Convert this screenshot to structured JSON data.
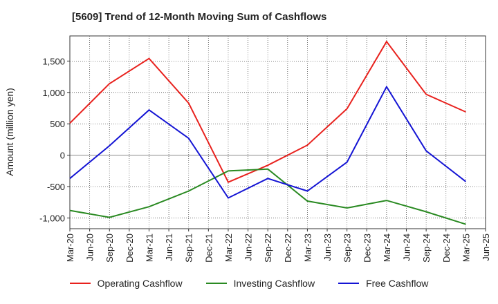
{
  "chart_data": {
    "type": "line",
    "title": "[5609]  Trend of 12-Month Moving Sum of Cashflows",
    "ylabel": "Amount (million yen)",
    "xlabel": "",
    "x_ticks": [
      "Mar-20",
      "Jun-20",
      "Sep-20",
      "Dec-20",
      "Mar-21",
      "Jun-21",
      "Sep-21",
      "Dec-21",
      "Mar-22",
      "Jun-22",
      "Sep-22",
      "Dec-22",
      "Mar-23",
      "Jun-23",
      "Sep-23",
      "Dec-23",
      "Mar-24",
      "Jun-24",
      "Sep-24",
      "Dec-24",
      "Mar-25",
      "Jun-25"
    ],
    "y_ticks": [
      -1000,
      -500,
      0,
      500,
      1000,
      1500
    ],
    "y_tick_labels": [
      "-1,000",
      "-500",
      "0",
      "500",
      "1,000",
      "1,500"
    ],
    "ylim": [
      -1170,
      1900
    ],
    "grid": true,
    "legend_position": "bottom",
    "series": [
      {
        "name": "Operating Cashflow",
        "color": "#e8211d",
        "x": [
          "Mar-20",
          "Sep-20",
          "Mar-21",
          "Sep-21",
          "Mar-22",
          "Sep-22",
          "Mar-23",
          "Sep-23",
          "Mar-24",
          "Sep-24",
          "Mar-25"
        ],
        "values": [
          510,
          1140,
          1540,
          830,
          -430,
          -160,
          160,
          740,
          1810,
          970,
          690
        ]
      },
      {
        "name": "Investing Cashflow",
        "color": "#2a8a22",
        "x": [
          "Mar-20",
          "Sep-20",
          "Mar-21",
          "Sep-21",
          "Mar-22",
          "Sep-22",
          "Mar-23",
          "Sep-23",
          "Mar-24",
          "Sep-24",
          "Mar-25"
        ],
        "values": [
          -880,
          -990,
          -820,
          -570,
          -250,
          -220,
          -730,
          -840,
          -720,
          -900,
          -1100
        ]
      },
      {
        "name": "Free Cashflow",
        "color": "#1414d4",
        "x": [
          "Mar-20",
          "Sep-20",
          "Mar-21",
          "Sep-21",
          "Mar-22",
          "Sep-22",
          "Mar-23",
          "Sep-23",
          "Mar-24",
          "Sep-24",
          "Mar-25"
        ],
        "values": [
          -370,
          150,
          720,
          270,
          -680,
          -370,
          -570,
          -110,
          1090,
          70,
          -420
        ]
      }
    ]
  }
}
